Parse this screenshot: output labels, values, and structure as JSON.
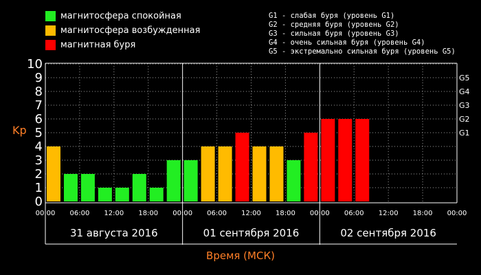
{
  "legend": {
    "items": [
      {
        "label": "магнитосфера спокойная",
        "color": "#22ee22"
      },
      {
        "label": "магнитосфера возбужденная",
        "color": "#ffbb00"
      },
      {
        "label": "магнитная буря",
        "color": "#ff0000"
      }
    ],
    "g_levels": [
      "G1 - слабая буря (уровень G1)",
      "G2 - средняя буря (уровень G2)",
      "G3 - сильная буря (уровень G3)",
      "G4 - очень сильная буря (уровень G4)",
      "G5 - экстремально сильная буря (уровень G5)"
    ]
  },
  "chart_data": {
    "type": "bar",
    "ylabel": "Kp",
    "xlabel": "Время (МСК)",
    "ylim": [
      0,
      10
    ],
    "y_ticks": [
      "0",
      "1",
      "2",
      "3",
      "4",
      "5",
      "6",
      "7",
      "8",
      "9",
      "10"
    ],
    "g_ticks": [
      {
        "label": "G1",
        "y": 5
      },
      {
        "label": "G2",
        "y": 6
      },
      {
        "label": "G3",
        "y": 7
      },
      {
        "label": "G4",
        "y": 8
      },
      {
        "label": "G5",
        "y": 9
      }
    ],
    "x_ticks": [
      "00:00",
      "06:00",
      "12:00",
      "18:00",
      "00:00",
      "06:00",
      "12:00",
      "18:00",
      "00:00",
      "06:00",
      "12:00",
      "18:00",
      "00:00"
    ],
    "days": [
      "31 августа 2016",
      "01 сентября 2016",
      "02 сентября 2016"
    ],
    "values": [
      4,
      2,
      2,
      1,
      1,
      2,
      1,
      3,
      3,
      4,
      4,
      5,
      4,
      4,
      3,
      5,
      6,
      6,
      6
    ],
    "colors": {
      "quiet": "#22ee22",
      "active": "#ffbb00",
      "storm": "#ff0000"
    }
  }
}
